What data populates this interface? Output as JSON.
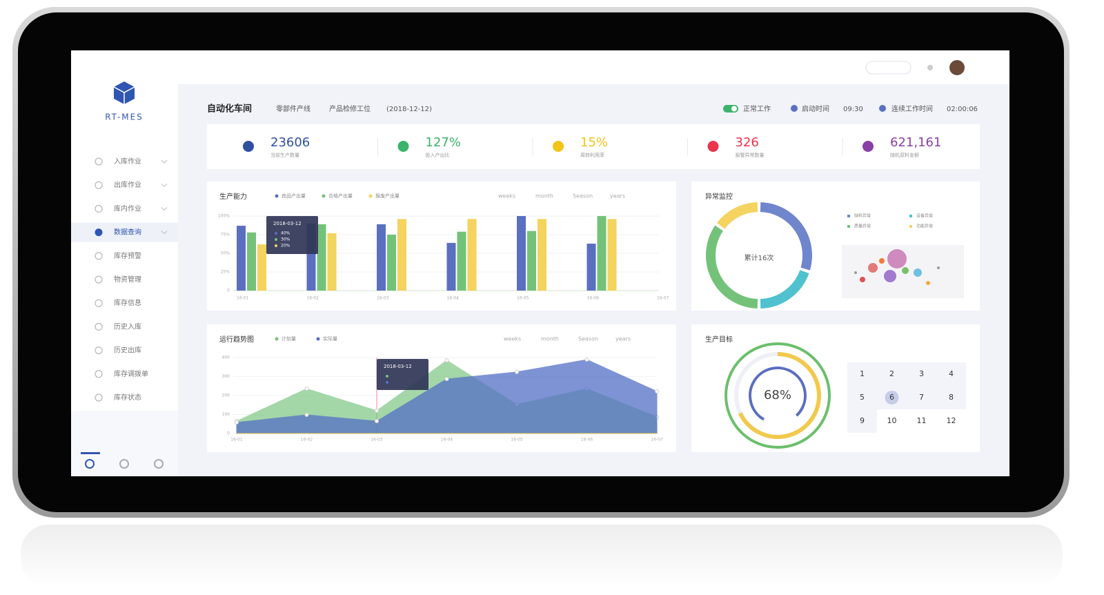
{
  "sidebar": {
    "logo": "RT-MES",
    "menu": [
      "入库作业",
      "出库作业",
      "库内作业",
      "数据查询",
      "库存预警",
      "物资管理",
      "库存信息",
      "历史入库",
      "历史出库",
      "库存调拨单",
      "库存状态"
    ],
    "active": 3
  },
  "header": {
    "title": "自动化车间",
    "line": "零部件产线",
    "station": "产品检修工位",
    "date": "(2018-12-12)",
    "status": "正常工作",
    "start_label": "启动时间",
    "start_time": "09:30",
    "run_label": "连续工作时间",
    "run_time": "02:00:06"
  },
  "stats": [
    {
      "value": "23606",
      "label": "当前生产数量",
      "color": "#2f4fa0"
    },
    {
      "value": "127%",
      "label": "投入产出比",
      "color": "#3bb36a"
    },
    {
      "value": "15%",
      "label": "周转利用率",
      "color": "#f2c318"
    },
    {
      "value": "326",
      "label": "报警异常数量",
      "color": "#e8344d"
    },
    {
      "value": "621,161",
      "label": "随机原料金额",
      "color": "#8a3fa8"
    }
  ],
  "period_tabs": [
    "weeks",
    "month",
    "Season",
    "years"
  ],
  "chart_data": [
    {
      "type": "bar",
      "title": "生产能力",
      "categories": [
        "16-01",
        "16-02",
        "16-03",
        "16-04",
        "16-05",
        "16-06",
        "16-07"
      ],
      "series": [
        {
          "name": "良品产出量",
          "color": "#5b6fc0",
          "values": [
            87,
            90,
            89,
            64,
            100,
            63,
            null
          ]
        },
        {
          "name": "合格产出量",
          "color": "#74c27a",
          "values": [
            78,
            89,
            75,
            79,
            80,
            100,
            null
          ]
        },
        {
          "name": "报废产出量",
          "color": "#f4d35e",
          "values": [
            62,
            77,
            96,
            96,
            96,
            96,
            null
          ]
        }
      ],
      "ylim": [
        0,
        100
      ],
      "yticks": [
        0,
        {
          "value": 25,
          "label": "25%"
        },
        {
          "value": 50,
          "label": "50%"
        },
        {
          "value": 75,
          "label": "75%"
        },
        {
          "value": 100,
          "label": "100%"
        }
      ],
      "tooltip": {
        "title": "2018-03-12",
        "items": [
          "40%",
          "30%",
          "20%"
        ]
      }
    },
    {
      "type": "area",
      "title": "运行趋势图",
      "categories": [
        "16-01",
        "16-02",
        "16-03",
        "16-04",
        "16-05",
        "16-06",
        "16-07"
      ],
      "series": [
        {
          "name": "计划量",
          "color": "#74c27a",
          "values": [
            65,
            236,
            120,
            385,
            153,
            236,
            87
          ]
        },
        {
          "name": "实际量",
          "color": "#5470c6",
          "values": [
            58,
            98,
            65,
            287,
            324,
            389,
            222
          ]
        }
      ],
      "ylim": [
        0,
        400
      ],
      "yticks": [
        0,
        100,
        200,
        300,
        400
      ],
      "tooltip": {
        "title": "2018-03-12"
      }
    },
    {
      "type": "pie",
      "title": "异常监控",
      "categories": [
        "缺料异常",
        "设备异常",
        "质量异常",
        "功能异常"
      ],
      "values": [
        30,
        20,
        35,
        15
      ],
      "colors": [
        "#6f86cc",
        "#4fc1cf",
        "#74c27a",
        "#f4d35e"
      ],
      "center_label": "累计16次"
    },
    {
      "type": "gauge",
      "title": "生产目标",
      "value": 68,
      "value_label": "68%",
      "ylim": [
        0,
        100
      ]
    }
  ],
  "calendar": {
    "days": [
      1,
      2,
      3,
      4,
      5,
      6,
      7,
      8,
      9,
      10,
      11,
      12
    ],
    "selected": 5
  }
}
